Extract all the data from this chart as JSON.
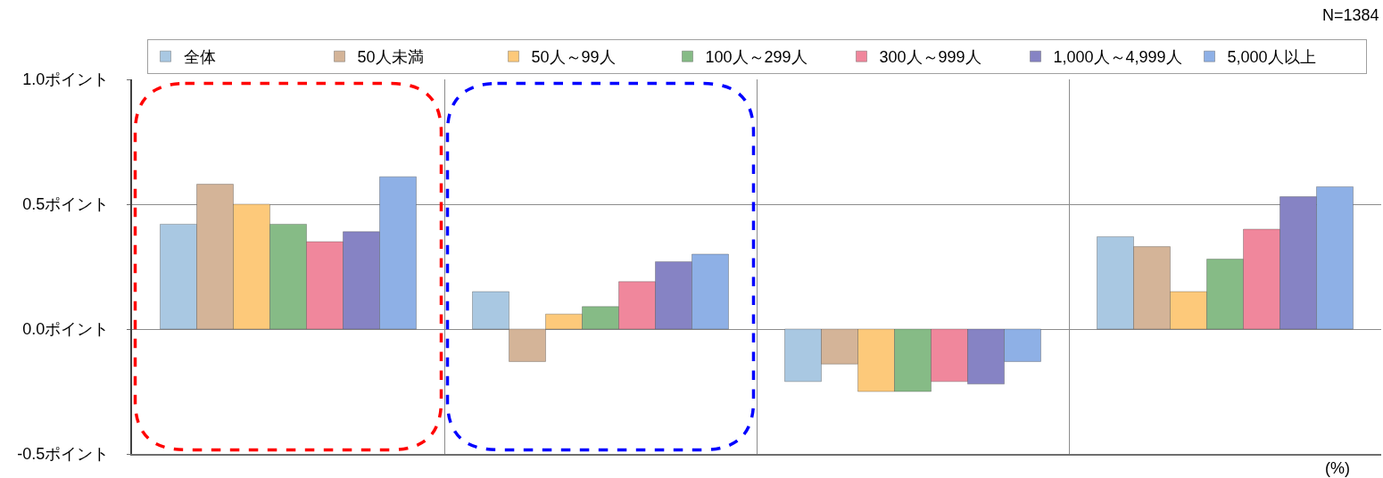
{
  "chart_data": {
    "type": "bar",
    "categories": [
      null,
      null,
      null,
      null
    ],
    "series": [
      {
        "name": "全体",
        "color": "#a9c8e2",
        "values": [
          0.42,
          0.15,
          -0.21,
          0.37
        ]
      },
      {
        "name": "50人未満",
        "color": "#d4b498",
        "values": [
          0.58,
          -0.13,
          -0.14,
          0.33
        ]
      },
      {
        "name": "50人～99人",
        "color": "#fdc97a",
        "values": [
          0.5,
          0.06,
          -0.25,
          0.15
        ]
      },
      {
        "name": "100人～299人",
        "color": "#86bb86",
        "values": [
          0.42,
          0.09,
          -0.25,
          0.28
        ]
      },
      {
        "name": "300人～999人",
        "color": "#f0879c",
        "values": [
          0.35,
          0.19,
          -0.21,
          0.4
        ]
      },
      {
        "name": "1,000人～4,999人",
        "color": "#8683c4",
        "values": [
          0.39,
          0.27,
          -0.22,
          0.53
        ]
      },
      {
        "name": "5,000人以上",
        "color": "#8eb0e6",
        "values": [
          0.61,
          0.3,
          -0.13,
          0.57
        ]
      }
    ],
    "ylim": [
      -0.5,
      1.0
    ],
    "yticks": [
      {
        "value": -0.5,
        "label": "-0.5ポイント"
      },
      {
        "value": 0.0,
        "label": "0.0ポイント"
      },
      {
        "value": 0.5,
        "label": "0.5ポイント"
      },
      {
        "value": 1.0,
        "label": "1.0ポイント"
      }
    ],
    "grid": true,
    "legend": "top",
    "tick_labels": "y",
    "annotations": [
      "N=1384",
      "(%)"
    ]
  }
}
